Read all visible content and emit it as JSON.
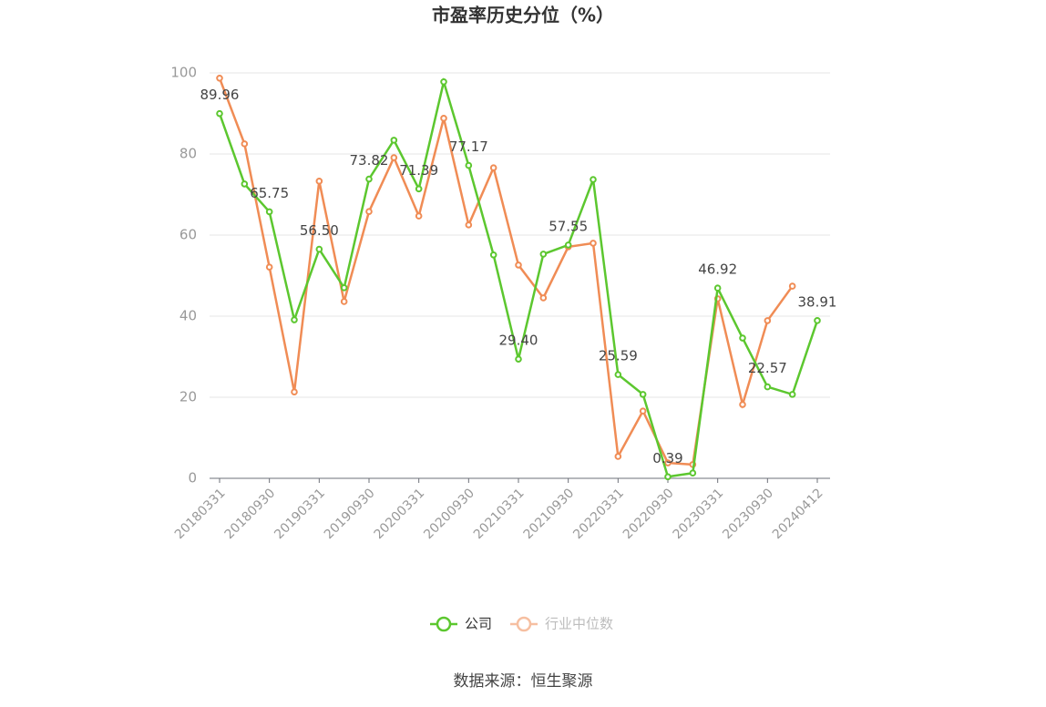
{
  "chart_data": {
    "type": "line",
    "title": "市盈率历史分位（%）",
    "source": "数据来源：恒生聚源",
    "categories": [
      "20180331",
      null,
      "20180930",
      null,
      "20190331",
      null,
      "20190930",
      null,
      "20200331",
      null,
      "20200930",
      null,
      "20210331",
      null,
      "20210930",
      null,
      "20220331",
      null,
      "20220930",
      null,
      "20230331",
      null,
      "20230930",
      null,
      "20240412"
    ],
    "series": [
      {
        "name": "公司",
        "color": "#5cc72f",
        "values": [
          89.96,
          72.6,
          65.75,
          39.1,
          56.5,
          47.0,
          73.82,
          83.4,
          71.39,
          97.8,
          77.17,
          55.1,
          29.4,
          55.3,
          57.55,
          73.7,
          25.59,
          20.7,
          0.39,
          1.3,
          46.92,
          34.6,
          22.57,
          20.7,
          38.91
        ],
        "value_labels": [
          "89.96",
          null,
          "65.75",
          null,
          "56.50",
          null,
          "73.82",
          null,
          "71.39",
          null,
          "77.17",
          null,
          "29.40",
          null,
          "57.55",
          null,
          "25.59",
          null,
          "0.39",
          null,
          "46.92",
          null,
          "22.57",
          null,
          "38.91"
        ]
      },
      {
        "name": "行业中位数",
        "color": "#f08c55",
        "values": [
          98.7,
          82.5,
          52.1,
          21.3,
          73.3,
          43.6,
          65.8,
          79.1,
          64.7,
          88.8,
          62.5,
          76.6,
          52.6,
          44.5,
          57.1,
          58.0,
          5.4,
          16.6,
          3.8,
          3.4,
          44.3,
          18.2,
          38.9,
          47.4,
          null
        ]
      }
    ],
    "ylim": [
      0,
      100
    ],
    "yticks": [
      0,
      20,
      40,
      60,
      80,
      100
    ],
    "grid": true,
    "legend": "bottom"
  }
}
